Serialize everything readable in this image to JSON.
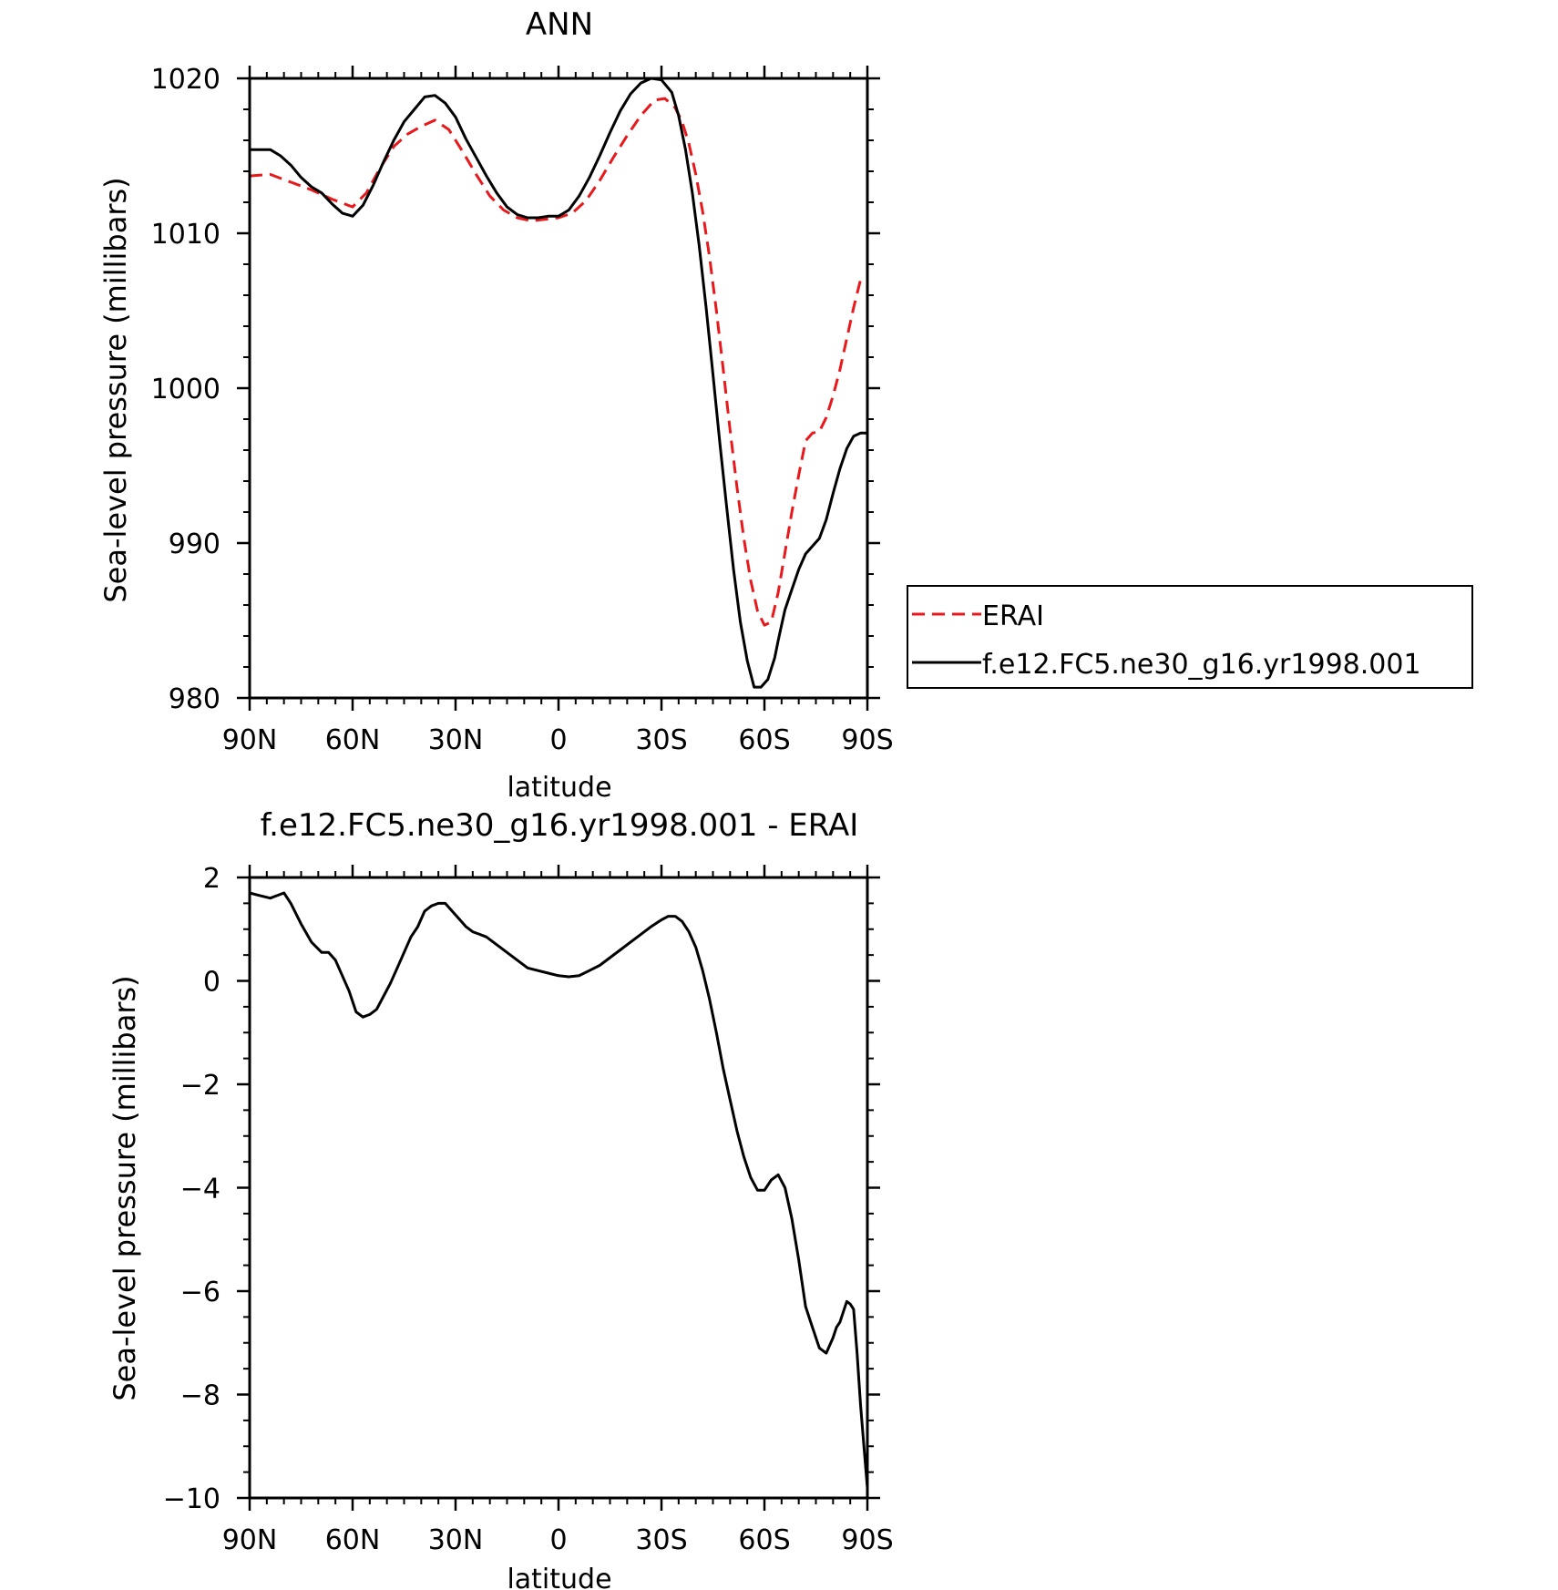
{
  "chart_data": [
    {
      "type": "line",
      "title": "ANN",
      "xlabel": "latitude",
      "ylabel": "Sea-level pressure (millibars)",
      "xlim": [
        90,
        -90
      ],
      "ylim": [
        980,
        1020
      ],
      "xticks": [
        90,
        60,
        30,
        0,
        -30,
        -60,
        -90
      ],
      "xtick_labels": [
        "90N",
        "60N",
        "30N",
        "0",
        "30S",
        "60S",
        "90S"
      ],
      "yticks": [
        980,
        990,
        1000,
        1010,
        1020
      ],
      "ytick_labels": [
        "980",
        "990",
        "1000",
        "1010",
        "1020"
      ],
      "grid": false,
      "legend_position": "right",
      "series": [
        {
          "name": "ERAI",
          "color": "#e8191c",
          "dash": "dashed",
          "x": [
            90,
            84,
            78,
            72,
            66,
            60,
            56,
            52,
            48,
            44,
            40,
            36,
            32,
            28,
            24,
            20,
            16,
            12,
            8,
            4,
            0,
            -4,
            -8,
            -12,
            -16,
            -20,
            -24,
            -28,
            -31,
            -34,
            -36,
            -38,
            -40,
            -42,
            -44,
            -46,
            -48,
            -50,
            -52,
            -54,
            -56,
            -58,
            -60,
            -62,
            -64,
            -66,
            -68,
            -70,
            -72,
            -74,
            -76,
            -78,
            -80,
            -82,
            -84,
            -86,
            -88,
            -90
          ],
          "y": [
            1013.7,
            1013.8,
            1013.3,
            1012.8,
            1012.2,
            1011.7,
            1012.6,
            1014.2,
            1015.6,
            1016.4,
            1016.9,
            1017.3,
            1016.7,
            1015.3,
            1013.8,
            1012.4,
            1011.5,
            1011.0,
            1010.8,
            1010.9,
            1011.0,
            1011.3,
            1012.1,
            1013.4,
            1014.9,
            1016.3,
            1017.6,
            1018.6,
            1018.7,
            1018.1,
            1017.2,
            1015.8,
            1013.8,
            1011.4,
            1008.5,
            1005.0,
            1001.2,
            997.3,
            993.6,
            990.3,
            987.6,
            985.6,
            984.7,
            984.9,
            986.8,
            989.4,
            992.0,
            994.4,
            996.6,
            997.1,
            997.2,
            998.1,
            999.5,
            1001.2,
            1003.2,
            1005.2,
            1007.0,
            1007.0
          ]
        },
        {
          "name": "f.e12.FC5.ne30_g16.yr1998.001",
          "color": "#000000",
          "dash": "solid",
          "x": [
            90,
            87,
            84,
            81,
            78,
            75,
            72,
            69,
            66,
            63,
            60,
            57,
            54,
            51,
            48,
            45,
            42,
            39,
            36,
            33,
            30,
            27,
            24,
            21,
            18,
            15,
            12,
            9,
            6,
            3,
            0,
            -3,
            -6,
            -9,
            -12,
            -15,
            -18,
            -21,
            -24,
            -27,
            -30,
            -33,
            -35,
            -37,
            -39,
            -41,
            -43,
            -45,
            -47,
            -49,
            -51,
            -53,
            -55,
            -57,
            -59,
            -61,
            -63,
            -64,
            -65,
            -66,
            -68,
            -70,
            -72,
            -74,
            -76,
            -78,
            -80,
            -82,
            -84,
            -86,
            -88,
            -90
          ],
          "y": [
            1015.4,
            1015.4,
            1015.4,
            1015.0,
            1014.4,
            1013.6,
            1013.0,
            1012.6,
            1011.9,
            1011.3,
            1011.1,
            1011.8,
            1013.1,
            1014.6,
            1016.0,
            1017.2,
            1018.0,
            1018.8,
            1018.9,
            1018.4,
            1017.5,
            1016.1,
            1014.9,
            1013.7,
            1012.6,
            1011.7,
            1011.2,
            1011.0,
            1011.0,
            1011.1,
            1011.1,
            1011.5,
            1012.4,
            1013.6,
            1015.0,
            1016.5,
            1017.9,
            1019.0,
            1019.7,
            1020.0,
            1019.9,
            1019.1,
            1017.6,
            1015.4,
            1012.6,
            1009.2,
            1005.2,
            1000.9,
            996.5,
            992.3,
            988.3,
            984.9,
            982.4,
            980.7,
            980.7,
            981.2,
            982.6,
            983.7,
            984.7,
            985.7,
            987.0,
            988.3,
            989.3,
            989.8,
            990.3,
            991.5,
            993.2,
            994.8,
            996.1,
            996.9,
            997.1,
            997.1
          ]
        }
      ],
      "legend": {
        "entries": [
          "ERAI",
          "f.e12.FC5.ne30_g16.yr1998.001"
        ]
      }
    },
    {
      "type": "line",
      "title": "f.e12.FC5.ne30_g16.yr1998.001 - ERAI",
      "xlabel": "latitude",
      "ylabel": "Sea-level pressure (millibars)",
      "xlim": [
        90,
        -90
      ],
      "ylim": [
        -10,
        2
      ],
      "xticks": [
        90,
        60,
        30,
        0,
        -30,
        -60,
        -90
      ],
      "xtick_labels": [
        "90N",
        "60N",
        "30N",
        "0",
        "30S",
        "60S",
        "90S"
      ],
      "yticks": [
        -10,
        -8,
        -6,
        -4,
        -2,
        0,
        2
      ],
      "ytick_labels": [
        "−10",
        "−8",
        "−6",
        "−4",
        "−2",
        "0",
        "2"
      ],
      "grid": false,
      "series": [
        {
          "color": "#000000",
          "dash": "solid",
          "x": [
            90,
            87,
            84,
            82,
            80,
            78,
            75,
            72,
            69,
            67,
            65,
            63,
            61,
            59,
            57,
            55,
            53,
            51,
            49,
            47,
            45,
            43,
            41,
            39,
            37,
            35,
            33,
            31,
            29,
            27,
            25,
            23,
            21,
            18,
            15,
            12,
            9,
            6,
            3,
            0,
            -3,
            -6,
            -9,
            -12,
            -15,
            -18,
            -21,
            -24,
            -27,
            -30,
            -32,
            -34,
            -36,
            -38,
            -40,
            -42,
            -44,
            -46,
            -48,
            -50,
            -52,
            -54,
            -56,
            -58,
            -60,
            -62,
            -64,
            -66,
            -68,
            -70,
            -72,
            -74,
            -76,
            -78,
            -80,
            -81,
            -82,
            -83,
            -84,
            -85,
            -86,
            -87,
            -88,
            -89,
            -90
          ],
          "y": [
            1.7,
            1.65,
            1.6,
            1.65,
            1.7,
            1.5,
            1.1,
            0.75,
            0.55,
            0.55,
            0.4,
            0.1,
            -0.2,
            -0.6,
            -0.7,
            -0.65,
            -0.55,
            -0.3,
            -0.05,
            0.25,
            0.55,
            0.85,
            1.05,
            1.35,
            1.45,
            1.5,
            1.5,
            1.35,
            1.2,
            1.05,
            0.95,
            0.9,
            0.85,
            0.7,
            0.55,
            0.4,
            0.25,
            0.2,
            0.15,
            0.1,
            0.08,
            0.1,
            0.2,
            0.3,
            0.45,
            0.6,
            0.75,
            0.9,
            1.05,
            1.18,
            1.25,
            1.25,
            1.15,
            0.95,
            0.65,
            0.2,
            -0.35,
            -1.0,
            -1.7,
            -2.3,
            -2.9,
            -3.4,
            -3.8,
            -4.05,
            -4.05,
            -3.85,
            -3.75,
            -4.0,
            -4.6,
            -5.4,
            -6.3,
            -6.7,
            -7.1,
            -7.2,
            -6.9,
            -6.7,
            -6.6,
            -6.4,
            -6.2,
            -6.25,
            -6.35,
            -7.2,
            -8.2,
            -9.0,
            -9.8
          ]
        }
      ]
    }
  ]
}
